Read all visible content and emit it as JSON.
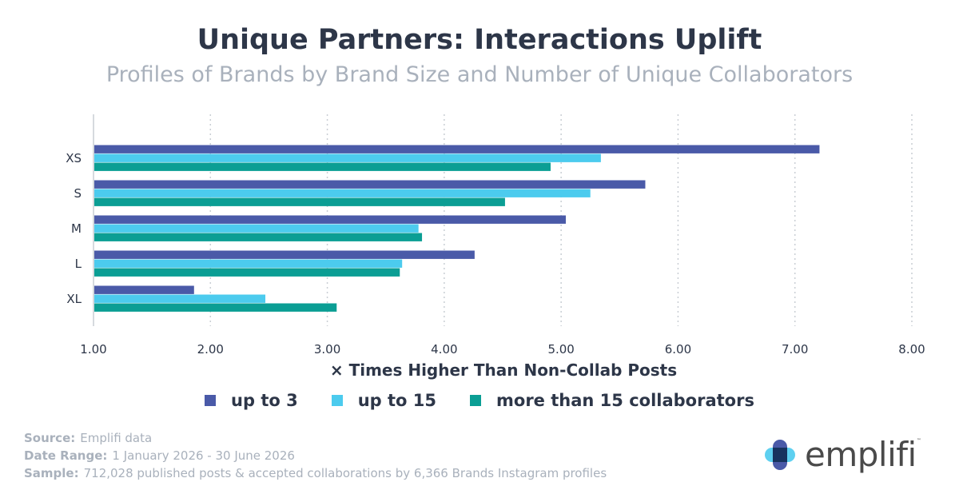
{
  "header": {
    "title": "Unique Partners: Interactions Uplift",
    "subtitle": "Profiles of Brands by Brand Size and Number of Unique Collaborators"
  },
  "chart_data": {
    "type": "bar",
    "orientation": "horizontal",
    "categories": [
      "XS",
      "S",
      "M",
      "L",
      "XL"
    ],
    "series": [
      {
        "name": "up to 3",
        "color": "#4a5aa8",
        "values": [
          7.21,
          5.72,
          5.04,
          4.26,
          1.86
        ]
      },
      {
        "name": "up to 15",
        "color": "#4ccbee",
        "values": [
          5.34,
          5.25,
          3.78,
          3.64,
          2.47
        ]
      },
      {
        "name": "more than 15 collaborators",
        "color": "#0b9e94",
        "values": [
          4.91,
          4.52,
          3.81,
          3.62,
          3.08
        ]
      }
    ],
    "xlabel": "× Times Higher Than Non-Collab Posts",
    "xlim": [
      1,
      8
    ],
    "xticks": [
      "1.00",
      "2.00",
      "3.00",
      "4.00",
      "5.00",
      "6.00",
      "7.00",
      "8.00"
    ],
    "grid": "vertical dotted",
    "legend_position": "bottom"
  },
  "footer": {
    "source_key": "Source:",
    "source_value": "Emplifi data",
    "date_key": "Date Range:",
    "date_value": "1 January 2026 - 30 June 2026",
    "sample_key": "Sample:",
    "sample_value": "712,028 published posts & accepted collaborations by 6,366 Brands Instagram profiles"
  },
  "logo": {
    "wordmark": "emplifi",
    "trademark": "™",
    "colors": [
      "#4ccbee",
      "#4a5aa8",
      "#17335e"
    ]
  }
}
